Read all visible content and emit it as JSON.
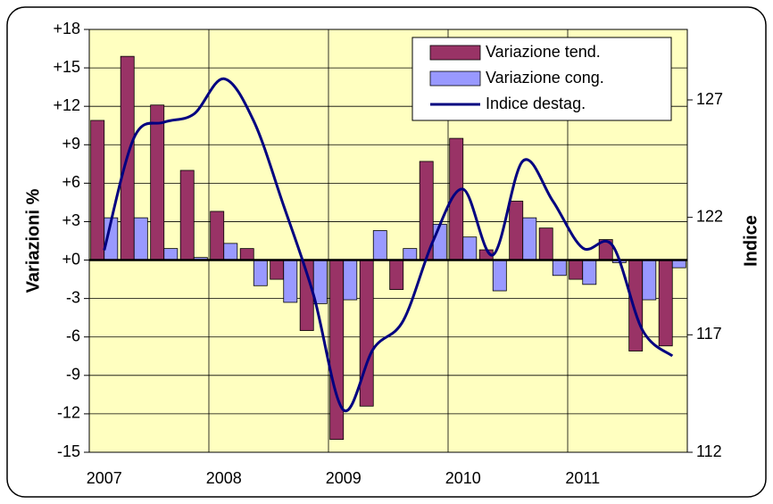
{
  "chart_data": {
    "type": "bar",
    "categories": [
      "2007",
      null,
      null,
      null,
      "2008",
      null,
      null,
      null,
      "2009",
      null,
      null,
      null,
      "2010",
      null,
      null,
      null,
      "2011",
      null,
      null,
      null
    ],
    "ylabel": "Variazioni %",
    "y2label": "Indice",
    "series": [
      {
        "name": "Variazione tend.",
        "color": "#993366",
        "values": [
          10.9,
          15.9,
          12.1,
          7.0,
          3.8,
          0.9,
          -1.5,
          -5.5,
          -14.0,
          -11.4,
          -2.3,
          7.7,
          9.5,
          0.8,
          4.6,
          2.5,
          -1.5,
          1.6,
          -7.1,
          -6.7
        ]
      },
      {
        "name": "Variazione cong.",
        "color": "#9999ff",
        "values": [
          3.3,
          3.3,
          0.9,
          0.2,
          1.3,
          -2.0,
          -3.3,
          -3.4,
          -3.1,
          2.3,
          0.9,
          2.8,
          1.8,
          -2.4,
          3.3,
          -1.2,
          -1.9,
          -0.2,
          -3.1,
          -0.6
        ]
      },
      {
        "name": "Indice destag.",
        "type": "line",
        "axis": "y2",
        "color": "#000080",
        "values": [
          120.6,
          125.4,
          126.05,
          126.4,
          127.9,
          126.1,
          122.5,
          118.7,
          113.8,
          116.4,
          117.6,
          121.0,
          123.2,
          120.4,
          124.4,
          122.7,
          120.7,
          120.8,
          117.2,
          116.1
        ]
      }
    ],
    "ylim": [
      -15,
      18
    ],
    "yticks": [
      {
        "value": 18,
        "label": "+18"
      },
      {
        "value": 15,
        "label": "+15"
      },
      {
        "value": 12,
        "label": "+12"
      },
      {
        "value": 9,
        "label": "+9"
      },
      {
        "value": 6,
        "label": "+6"
      },
      {
        "value": 3,
        "label": "+3"
      },
      {
        "value": 0,
        "label": "+0"
      },
      -3,
      -6,
      -9,
      -12,
      -15
    ],
    "y2lim": [
      112,
      130
    ],
    "y2ticks": [
      112,
      117,
      122,
      127
    ],
    "grid": true,
    "legend": "upper right",
    "plot_background": "#ffffc0"
  }
}
